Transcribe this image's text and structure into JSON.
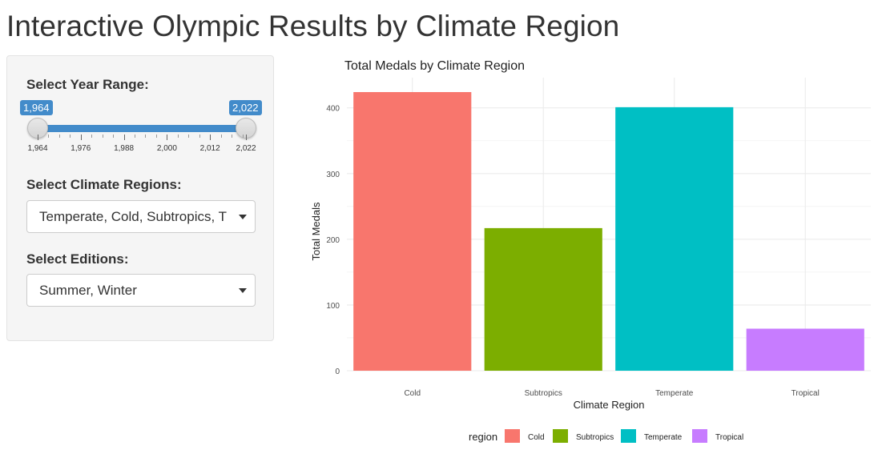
{
  "page": {
    "title": "Interactive Olympic Results by Climate Region"
  },
  "sidebar": {
    "year_range": {
      "label": "Select Year Range:",
      "from": 1964,
      "to": 2022,
      "from_label": "1,964",
      "to_label": "2,022",
      "min": 1964,
      "max": 2022,
      "tick_labels": [
        "1,964",
        "1,976",
        "1,988",
        "2,000",
        "2,012",
        "2,022"
      ]
    },
    "climate_regions": {
      "label": "Select Climate Regions:",
      "value": "Temperate, Cold, Subtropics, T"
    },
    "editions": {
      "label": "Select Editions:",
      "value": "Summer, Winter"
    }
  },
  "colors": {
    "accent": "#428bca",
    "cold": "#F8766D",
    "subtropics": "#7CAE00",
    "temperate": "#00BFC4",
    "tropical": "#C77CFF"
  },
  "chart_data": {
    "type": "bar",
    "title": "Total Medals by Climate Region",
    "xlabel": "Climate Region",
    "ylabel": "Total Medals",
    "categories": [
      "Cold",
      "Subtropics",
      "Temperate",
      "Tropical"
    ],
    "values": [
      424,
      217,
      401,
      64
    ],
    "colors": [
      "#F8766D",
      "#7CAE00",
      "#00BFC4",
      "#C77CFF"
    ],
    "ylim": [
      0,
      424
    ],
    "yticks": [
      0,
      100,
      200,
      300,
      400
    ],
    "grid": true,
    "legend": {
      "title": "region",
      "position": "bottom",
      "entries": [
        "Cold",
        "Subtropics",
        "Temperate",
        "Tropical"
      ]
    }
  }
}
